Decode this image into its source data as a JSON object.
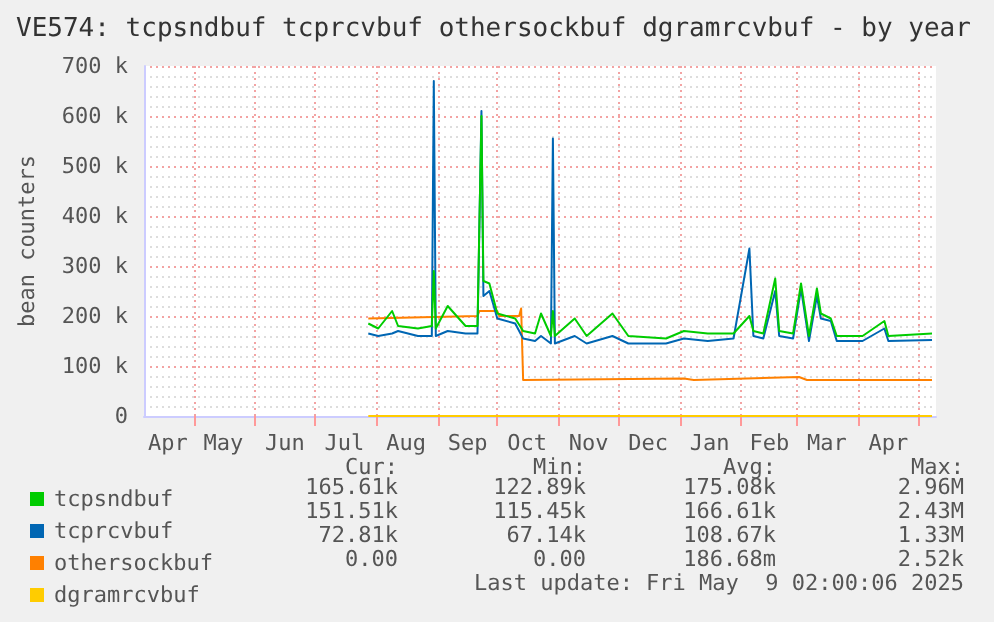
{
  "chart_data": {
    "type": "line",
    "title": "VE574: tcpsndbuf tcprcvbuf othersockbuf dgramrcvbuf - by year",
    "ylabel": "bean counters",
    "x": [
      "2024-07-28",
      "2024-08-02",
      "2024-08-09",
      "2024-08-12",
      "2024-08-22",
      "2024-08-29",
      "2024-08-30",
      "2024-08-31",
      "2024-09-06",
      "2024-09-15",
      "2024-09-21",
      "2024-09-23",
      "2024-09-24",
      "2024-09-27",
      "2024-10-01",
      "2024-10-10",
      "2024-10-14",
      "2024-10-20",
      "2024-10-23",
      "2024-10-28",
      "2024-10-29",
      "2024-10-30",
      "2024-11-09",
      "2024-11-15",
      "2024-11-28",
      "2024-12-06",
      "2024-12-25",
      "2025-01-03",
      "2025-01-15",
      "2025-01-28",
      "2025-02-05",
      "2025-02-07",
      "2025-02-12",
      "2025-02-18",
      "2025-02-20",
      "2025-02-27",
      "2025-03-03",
      "2025-03-07",
      "2025-03-11",
      "2025-03-13",
      "2025-03-18",
      "2025-03-21",
      "2025-04-03",
      "2025-04-14",
      "2025-04-16",
      "2025-05-08"
    ],
    "series": [
      {
        "name": "tcpsndbuf",
        "color": "#00cc00",
        "values": [
          185000,
          175000,
          210000,
          180000,
          175000,
          180000,
          290000,
          175000,
          220000,
          180000,
          180000,
          600000,
          270000,
          265000,
          205000,
          195000,
          170000,
          165000,
          205000,
          160000,
          210000,
          160000,
          195000,
          160000,
          205000,
          160000,
          155000,
          170000,
          165000,
          165000,
          200000,
          170000,
          165000,
          275000,
          170000,
          165000,
          265000,
          160000,
          255000,
          205000,
          195000,
          160000,
          160000,
          190000,
          160000,
          165000
        ]
      },
      {
        "name": "tcprcvbuf",
        "color": "#0066b3",
        "values": [
          165000,
          160000,
          165000,
          170000,
          160000,
          160000,
          670000,
          160000,
          170000,
          165000,
          165000,
          610000,
          240000,
          250000,
          195000,
          185000,
          155000,
          150000,
          160000,
          145000,
          555000,
          145000,
          160000,
          145000,
          160000,
          145000,
          145000,
          155000,
          150000,
          155000,
          335000,
          160000,
          155000,
          250000,
          160000,
          155000,
          255000,
          150000,
          240000,
          195000,
          190000,
          150000,
          150000,
          175000,
          150000,
          152000
        ]
      },
      {
        "name": "othersockbuf",
        "color": "#ff8000",
        "x": [
          "2024-07-28",
          "2024-09-21",
          "2024-09-22",
          "2024-10-01",
          "2024-10-02",
          "2024-10-12",
          "2024-10-13",
          "2024-10-14",
          "2025-01-03",
          "2025-01-08",
          "2025-03-02",
          "2025-03-06",
          "2025-05-08"
        ],
        "values": [
          195000,
          200000,
          210000,
          210000,
          200000,
          200000,
          215000,
          72000,
          75000,
          72000,
          78000,
          72000,
          72000
        ]
      },
      {
        "name": "dgramrcvbuf",
        "color": "#ffcc00",
        "x": [
          "2024-07-28",
          "2025-05-08"
        ],
        "values": [
          0,
          0
        ]
      }
    ],
    "xlim": [
      "2024-04-06",
      "2025-05-10"
    ],
    "xticks": [
      {
        "value": "2024-05-01",
        "label": null
      },
      {
        "value": "2024-06-01",
        "label": null
      },
      {
        "value": "2024-07-01",
        "label": null
      },
      {
        "value": "2024-08-01",
        "label": null
      },
      {
        "value": "2024-09-01",
        "label": null
      },
      {
        "value": "2024-10-01",
        "label": null
      },
      {
        "value": "2024-11-01",
        "label": null
      },
      {
        "value": "2024-12-01",
        "label": null
      },
      {
        "value": "2025-01-01",
        "label": null
      },
      {
        "value": "2025-02-01",
        "label": null
      },
      {
        "value": "2025-03-01",
        "label": null
      },
      {
        "value": "2025-04-01",
        "label": null
      },
      {
        "value": "2025-05-01",
        "label": null
      },
      {
        "value": "2024-04-18",
        "label": "Apr"
      },
      {
        "value": "2024-05-16",
        "label": "May"
      },
      {
        "value": "2024-06-16",
        "label": "Jun"
      },
      {
        "value": "2024-07-16",
        "label": "Jul"
      },
      {
        "value": "2024-08-16",
        "label": "Aug"
      },
      {
        "value": "2024-09-16",
        "label": "Sep"
      },
      {
        "value": "2024-10-16",
        "label": "Oct"
      },
      {
        "value": "2024-11-16",
        "label": "Nov"
      },
      {
        "value": "2024-12-16",
        "label": "Dec"
      },
      {
        "value": "2025-01-16",
        "label": "Jan"
      },
      {
        "value": "2025-02-15",
        "label": "Feb"
      },
      {
        "value": "2025-03-16",
        "label": "Mar"
      },
      {
        "value": "2025-04-16",
        "label": "Apr"
      }
    ],
    "ylim": [
      0,
      700000
    ],
    "yticks": [
      0,
      {
        "value": 100000,
        "label": "100 k"
      },
      {
        "value": 200000,
        "label": "200 k"
      },
      {
        "value": 300000,
        "label": "300 k"
      },
      {
        "value": 400000,
        "label": "400 k"
      },
      {
        "value": 500000,
        "label": "500 k"
      },
      {
        "value": 600000,
        "label": "600 k"
      },
      {
        "value": 700000,
        "label": "700 k"
      }
    ],
    "grid": true,
    "legend": "bottom left",
    "annotations": [
      "Cur:",
      "Min:",
      "Avg:",
      "Max:",
      "165.61k",
      "122.89k",
      "175.08k",
      "2.96M",
      "151.51k",
      "115.45k",
      "166.61k",
      "2.43M",
      "72.81k",
      "67.14k",
      "108.67k",
      "1.33M",
      "0.00",
      "0.00",
      "186.68m",
      "2.52k",
      "Last update: Fri May  9 02:00:06 2025"
    ]
  }
}
